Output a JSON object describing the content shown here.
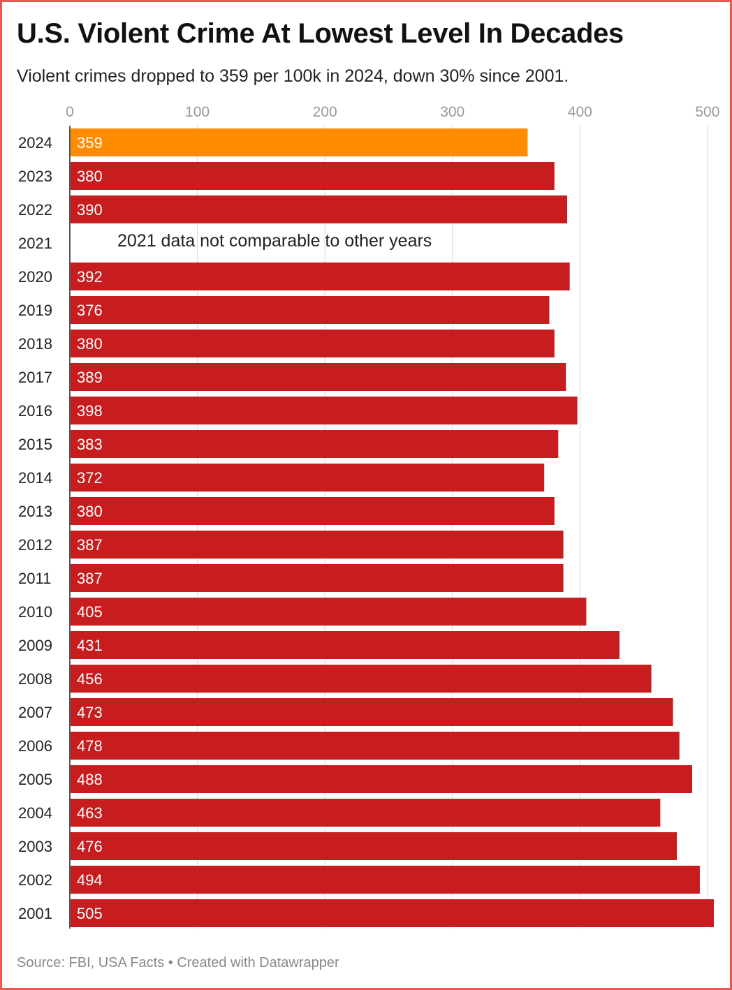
{
  "title": "U.S. Violent Crime At Lowest Level In Decades",
  "subtitle": "Violent crimes dropped to 359 per 100k in 2024, down 30% since 2001.",
  "footer": {
    "source": "Source: FBI, USA Facts",
    "separator": "•",
    "credit": "Created with Datawrapper"
  },
  "colors": {
    "bar": "#c81d1f",
    "highlight": "#ff8c00",
    "border": "#e85a4f",
    "grid": "#d9d9d9",
    "tick_text": "#999999",
    "label_text": "#222222",
    "value_text": "#ffffff"
  },
  "chart_data": {
    "type": "bar",
    "orientation": "horizontal",
    "title": "U.S. Violent Crime At Lowest Level In Decades",
    "xlabel": "",
    "ylabel": "",
    "xlim": [
      0,
      505
    ],
    "xticks": [
      0,
      100,
      200,
      300,
      400,
      500
    ],
    "grid": true,
    "categories": [
      "2024",
      "2023",
      "2022",
      "2021",
      "2020",
      "2019",
      "2018",
      "2017",
      "2016",
      "2015",
      "2014",
      "2013",
      "2012",
      "2011",
      "2010",
      "2009",
      "2008",
      "2007",
      "2006",
      "2005",
      "2004",
      "2003",
      "2002",
      "2001"
    ],
    "values": [
      359,
      380,
      390,
      null,
      392,
      376,
      380,
      389,
      398,
      383,
      372,
      380,
      387,
      387,
      405,
      431,
      456,
      473,
      478,
      488,
      463,
      476,
      494,
      505
    ],
    "highlight_category": "2024",
    "annotations": [
      {
        "category": "2021",
        "text": "2021 data not comparable to other years"
      }
    ]
  }
}
